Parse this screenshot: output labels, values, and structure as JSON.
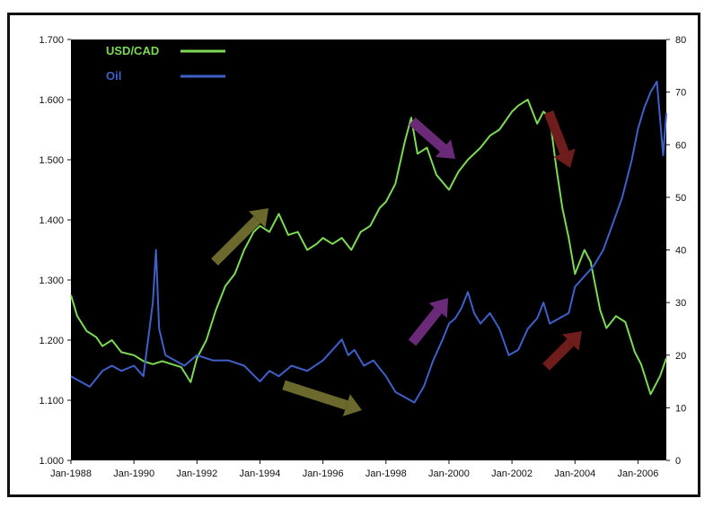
{
  "chart_data": {
    "type": "line",
    "title": "",
    "xlabel": "",
    "ylabel": "",
    "y2label": "",
    "x_tick_labels": [
      "Jan-1988",
      "Jan-1990",
      "Jan-1992",
      "Jan-1994",
      "Jan-1996",
      "Jan-1998",
      "Jan-2000",
      "Jan-2002",
      "Jan-2004",
      "Jan-2006"
    ],
    "x_range": [
      1988.0,
      2006.9
    ],
    "y_left": {
      "range": [
        1.0,
        1.7
      ],
      "ticks": [
        "1.000",
        "1.100",
        "1.200",
        "1.300",
        "1.400",
        "1.500",
        "1.600",
        "1.700"
      ]
    },
    "y_right": {
      "range": [
        0,
        80
      ],
      "ticks": [
        "0",
        "10",
        "20",
        "30",
        "40",
        "50",
        "60",
        "70",
        "80"
      ]
    },
    "grid": false,
    "background": "#000000",
    "legend": {
      "placement": "top-left"
    },
    "series": [
      {
        "name": "USD/CAD",
        "axis": "left",
        "color": "#7ed957",
        "x": [
          1988.0,
          1988.2,
          1988.5,
          1988.8,
          1989.0,
          1989.3,
          1989.6,
          1990.0,
          1990.3,
          1990.6,
          1990.9,
          1991.2,
          1991.5,
          1991.8,
          1992.0,
          1992.3,
          1992.6,
          1992.9,
          1993.2,
          1993.5,
          1993.8,
          1994.0,
          1994.3,
          1994.6,
          1994.9,
          1995.2,
          1995.5,
          1995.8,
          1996.0,
          1996.3,
          1996.6,
          1996.9,
          1997.2,
          1997.5,
          1997.8,
          1998.0,
          1998.3,
          1998.6,
          1998.8,
          1999.0,
          1999.3,
          1999.6,
          2000.0,
          2000.3,
          2000.6,
          2001.0,
          2001.3,
          2001.6,
          2002.0,
          2002.2,
          2002.5,
          2002.8,
          2003.0,
          2003.2,
          2003.4,
          2003.6,
          2003.8,
          2004.0,
          2004.3,
          2004.5,
          2004.8,
          2005.0,
          2005.3,
          2005.6,
          2005.9,
          2006.1,
          2006.4,
          2006.7,
          2006.9
        ],
        "values": [
          1.275,
          1.24,
          1.215,
          1.205,
          1.19,
          1.2,
          1.18,
          1.175,
          1.165,
          1.16,
          1.165,
          1.16,
          1.155,
          1.13,
          1.17,
          1.2,
          1.25,
          1.29,
          1.31,
          1.35,
          1.38,
          1.39,
          1.38,
          1.41,
          1.375,
          1.38,
          1.35,
          1.36,
          1.37,
          1.36,
          1.37,
          1.35,
          1.38,
          1.39,
          1.42,
          1.43,
          1.46,
          1.53,
          1.57,
          1.51,
          1.52,
          1.475,
          1.45,
          1.48,
          1.5,
          1.52,
          1.54,
          1.55,
          1.58,
          1.59,
          1.6,
          1.56,
          1.58,
          1.57,
          1.49,
          1.42,
          1.37,
          1.31,
          1.35,
          1.33,
          1.25,
          1.22,
          1.24,
          1.23,
          1.18,
          1.16,
          1.11,
          1.14,
          1.17
        ]
      },
      {
        "name": "Oil",
        "axis": "right",
        "color": "#4060c8",
        "x": [
          1988.0,
          1988.3,
          1988.6,
          1989.0,
          1989.3,
          1989.6,
          1990.0,
          1990.3,
          1990.6,
          1990.7,
          1990.8,
          1991.0,
          1991.3,
          1991.6,
          1992.0,
          1992.5,
          1993.0,
          1993.5,
          1994.0,
          1994.3,
          1994.6,
          1995.0,
          1995.5,
          1996.0,
          1996.3,
          1996.6,
          1996.8,
          1997.0,
          1997.3,
          1997.6,
          1998.0,
          1998.3,
          1998.6,
          1998.9,
          1999.2,
          1999.5,
          1999.8,
          2000.0,
          2000.2,
          2000.4,
          2000.6,
          2000.8,
          2001.0,
          2001.3,
          2001.6,
          2001.9,
          2002.2,
          2002.5,
          2002.8,
          2003.0,
          2003.2,
          2003.5,
          2003.8,
          2004.0,
          2004.3,
          2004.6,
          2004.9,
          2005.2,
          2005.5,
          2005.8,
          2006.0,
          2006.2,
          2006.4,
          2006.6,
          2006.8,
          2006.9
        ],
        "values": [
          16,
          15,
          14,
          17,
          18,
          17,
          18,
          16,
          30,
          40,
          25,
          20,
          19,
          18,
          20,
          19,
          19,
          18,
          15,
          17,
          16,
          18,
          17,
          19,
          21,
          23,
          20,
          21,
          18,
          19,
          16,
          13,
          12,
          11,
          14,
          19,
          23,
          26,
          27,
          29,
          32,
          28,
          26,
          28,
          25,
          20,
          21,
          25,
          27,
          30,
          26,
          27,
          28,
          33,
          35,
          37,
          40,
          45,
          50,
          57,
          63,
          67,
          70,
          72,
          58,
          66
        ]
      }
    ]
  }
}
